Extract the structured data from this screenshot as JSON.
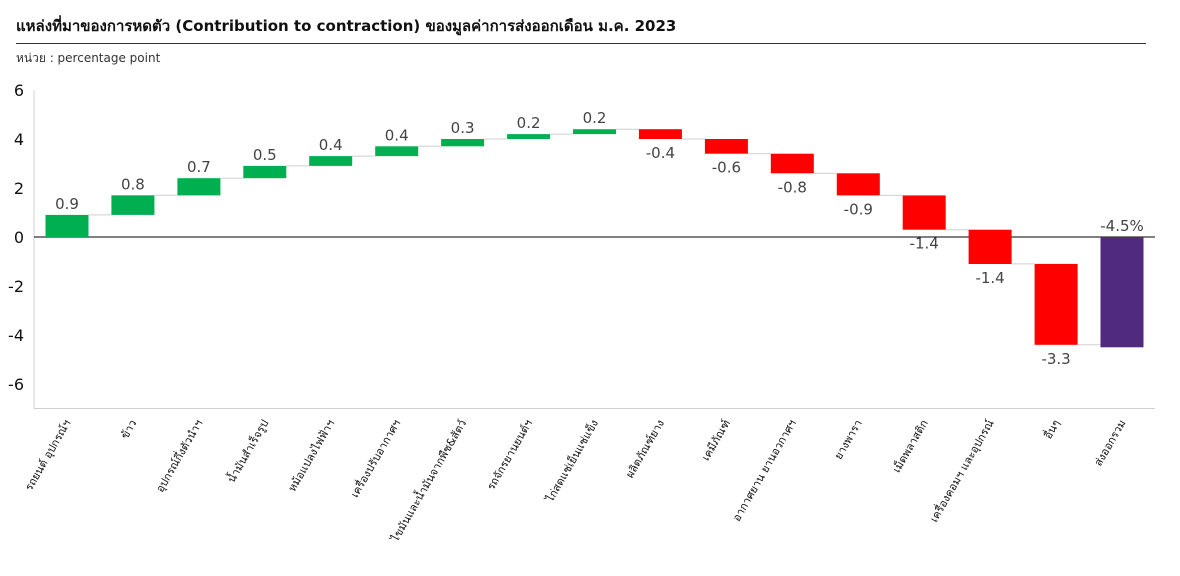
{
  "title": "แหล่งที่มาของการหดตัว (Contribution to contraction) ของมูลค่าการส่งออกเดือน ม.ค. 2023",
  "subtitle": "หน่วย : percentage point",
  "colors": {
    "increase": "#00B050",
    "decrease": "#FF0000",
    "total": "#4F2A7F"
  },
  "chart_data": {
    "type": "bar",
    "subtype": "waterfall",
    "ylim": [
      -7,
      6
    ],
    "yticks": [
      -6,
      -4,
      -2,
      0,
      2,
      4,
      6
    ],
    "categories": [
      "รถยนต์ อุปกรณ์ฯ",
      "ข้าว",
      "อุปกรณ์กึ่งตัวนำฯ",
      "น้ำมันสำเร็จรูป",
      "หม้อแปลงไฟฟ้าฯ",
      "เครื่องปรับอากาศฯ",
      "ไขมันและน้ำมันจากพืช&สัตว์",
      "รถจักรยานยนต์ฯ",
      "ไก่สดแช่เย็นแช่แข็ง",
      "ผลิตภัณฑ์ยาง",
      "เคมีภัณฑ์",
      "อากาศยาน ยานอวกาศฯ",
      "ยางพารา",
      "เม็ดพลาสติก",
      "เครื่องคอมฯ และอุปกรณ์",
      "อื่นๆ",
      "ส่งออกรวม"
    ],
    "values": [
      0.9,
      0.8,
      0.7,
      0.5,
      0.4,
      0.4,
      0.3,
      0.2,
      0.2,
      -0.4,
      -0.6,
      -0.8,
      -0.9,
      -1.4,
      -1.4,
      -3.3,
      -4.5
    ],
    "labels": [
      "0.9",
      "0.8",
      "0.7",
      "0.5",
      "0.4",
      "0.4",
      "0.3",
      "0.2",
      "0.2",
      "-0.4",
      "-0.6",
      "-0.8",
      "-0.9",
      "-1.4",
      "-1.4",
      "-3.3",
      "-4.5%"
    ],
    "total_index": 16,
    "grid": false,
    "legend": "none"
  }
}
